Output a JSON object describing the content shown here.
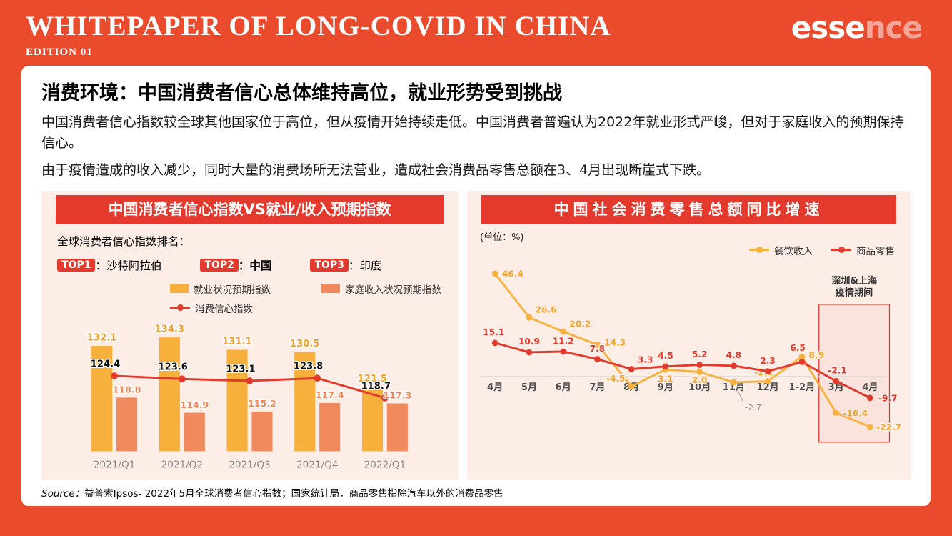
{
  "header": {
    "title": "WHITEPAPER OF LONG-COVID IN CHINA",
    "edition": "EDITION 01",
    "logo": {
      "bold": "esse",
      "light": "nce"
    }
  },
  "card": {
    "heading": "消费环境：中国消费者信心总体维持高位，就业形势受到挑战",
    "para1": "中国消费者信心指数较全球其他国家位于高位，但从疫情开始持续走低。中国消费者普遍认为2022年就业形式严峻，但对于家庭收入的预期保持信心。",
    "para2": "由于疫情造成的收入减少，同时大量的消费场所无法营业，造成社会消费品零售总额在3、4月出现断崖式下跌。",
    "source_prefix": "Source：",
    "source_text": "益普索Ipsos- 2022年5月全球消费者信心指数；国家统计局，商品零售指除汽车以外的消费品零售"
  },
  "left_panel": {
    "title": "中国消费者信心指数VS就业/收入预期指数",
    "ranking_label": "全球消费者信心指数排名：",
    "rankings": [
      {
        "badge": "TOP1",
        "name": "：沙特阿拉伯",
        "bold": false
      },
      {
        "badge": "TOP2",
        "name": "：中国",
        "bold": true
      },
      {
        "badge": "TOP3",
        "name": "：印度",
        "bold": false
      }
    ]
  },
  "right_panel": {
    "title": "中国社会消费零售总额同比增速",
    "unit_label": "(单位：%)"
  },
  "chart_data": [
    {
      "type": "bar",
      "title": "中国消费者信心指数VS就业/收入预期指数",
      "categories": [
        "2021/Q1",
        "2021/Q2",
        "2021/Q3",
        "2021/Q4",
        "2022/Q1"
      ],
      "series": [
        {
          "name": "就业状况预期指数",
          "kind": "bar",
          "color": "#F7B03C",
          "values": [
            132.1,
            134.3,
            131.1,
            130.5,
            121.5
          ]
        },
        {
          "name": "消费信心指数",
          "kind": "line",
          "color": "#E23A2C",
          "values": [
            124.4,
            123.6,
            123.1,
            123.8,
            118.7
          ]
        },
        {
          "name": "家庭收入状况预期指数",
          "kind": "bar",
          "color": "#F08A5C",
          "values": [
            118.8,
            114.9,
            115.2,
            117.4,
            117.3
          ]
        }
      ],
      "baseline_value": 105,
      "legend_position": "top-center",
      "grid": false
    },
    {
      "type": "line",
      "title": "中国社会消费零售总额同比增速",
      "unit": "%",
      "categories": [
        "4月",
        "5月",
        "6月",
        "7月",
        "8月",
        "9月",
        "10月",
        "11月",
        "12月",
        "1-2月",
        "3月",
        "4月"
      ],
      "series": [
        {
          "name": "餐饮收入",
          "color": "#F6B23E",
          "values": [
            46.4,
            26.6,
            20.2,
            14.3,
            -4.5,
            3.1,
            2.0,
            -2.7,
            -2.2,
            8.9,
            -16.4,
            -22.7
          ]
        },
        {
          "name": "商品零售",
          "color": "#E23A2C",
          "values": [
            15.1,
            10.9,
            11.2,
            7.8,
            3.3,
            4.5,
            5.2,
            4.8,
            2.3,
            6.5,
            -2.1,
            -9.7
          ]
        }
      ],
      "highlight": {
        "label": [
          "深圳&上海",
          "疫情期间"
        ],
        "from_category_index": 10,
        "to_category_index": 11
      },
      "ylim": [
        -25,
        50
      ],
      "legend_position": "top-right",
      "grid": false
    }
  ],
  "colors": {
    "background": "#E94B2C",
    "accent_red": "#E43A2E",
    "panel_pink": "#FCEDE7",
    "bar_yellow": "#F7B03C",
    "bar_salmon": "#F08A5C",
    "line_red": "#E23A2C",
    "line_yellow": "#F6B23E"
  }
}
